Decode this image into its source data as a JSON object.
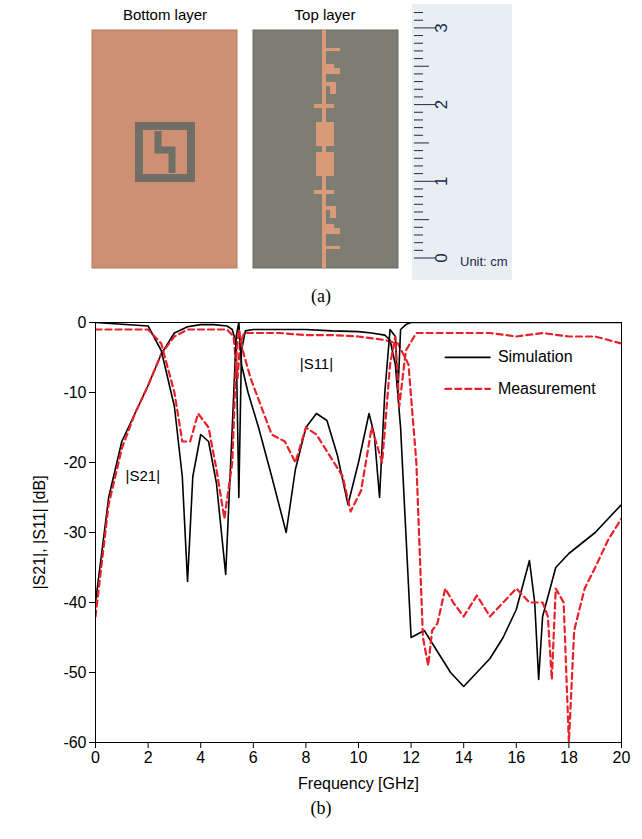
{
  "photo": {
    "label": "(a)",
    "bottom_layer": "Bottom layer",
    "top_layer": "Top layer",
    "ruler": {
      "ticks": [
        0,
        1,
        2,
        3
      ],
      "unit": "Unit: cm"
    }
  },
  "chart_data": {
    "type": "line",
    "label": "(b)",
    "x_label": "Frequency [GHz]",
    "y_label": "|S21|, |S11| [dB]",
    "xlim": [
      0,
      20
    ],
    "xticks": [
      0,
      2,
      4,
      6,
      8,
      10,
      12,
      14,
      16,
      18,
      20
    ],
    "ylim": [
      -60,
      0
    ],
    "yticks": [
      -60,
      -50,
      -40,
      -30,
      -20,
      -10,
      0
    ],
    "grid": false,
    "legend": "upper right",
    "annotations": [
      {
        "text": "|S21|",
        "x": 1.8,
        "y": -22
      },
      {
        "text": "|S11|",
        "x": 8.4,
        "y": -6
      }
    ],
    "series": [
      {
        "name": "Simulation",
        "parameter": "|S21|",
        "color": "#000000",
        "line_style": "solid",
        "x": [
          0,
          0.5,
          1,
          1.5,
          2,
          2.5,
          3,
          3.5,
          4,
          4.5,
          5,
          5.2,
          5.35,
          5.45,
          5.55,
          5.7,
          6,
          7,
          8,
          9,
          10,
          10.5,
          11,
          11.2,
          11.4,
          11.6,
          11.8,
          12,
          12.5,
          13,
          13.5,
          14,
          14.5,
          15,
          15.5,
          16,
          16.5,
          16.7,
          16.85,
          17,
          17.5,
          18,
          19,
          20
        ],
        "values": [
          -40,
          -25,
          -17,
          -13,
          -9,
          -4.5,
          -1.5,
          -0.6,
          -0.3,
          -0.3,
          -0.5,
          -1,
          -3,
          -25,
          -4,
          -1.2,
          -1,
          -1,
          -1,
          -1.2,
          -1.3,
          -1.5,
          -1.8,
          -2.5,
          -6,
          -15,
          -30,
          -45,
          -44,
          -47,
          -50,
          -52,
          -50,
          -48,
          -45,
          -41,
          -34,
          -40,
          -51,
          -42,
          -35,
          -33,
          -30,
          -26
        ]
      },
      {
        "name": "Measurement",
        "parameter": "|S21|",
        "color": "#e8202a",
        "line_style": "dashed",
        "x": [
          0,
          0.5,
          1,
          1.5,
          2,
          2.5,
          3,
          3.5,
          4,
          5,
          5.25,
          5.4,
          5.5,
          5.65,
          6,
          7,
          8,
          9,
          10,
          11,
          11.5,
          11.9,
          12.2,
          12.45,
          12.65,
          12.8,
          13,
          13.3,
          13.6,
          14,
          14.5,
          15,
          15.5,
          16,
          16.5,
          17,
          17.2,
          17.35,
          17.5,
          17.8,
          18,
          18.2,
          18.6,
          19,
          19.5,
          20
        ],
        "values": [
          -42,
          -26,
          -18,
          -13,
          -9,
          -4.5,
          -2,
          -1,
          -1,
          -1,
          -2,
          -8,
          -3,
          -1.5,
          -1.5,
          -1.5,
          -1.8,
          -1.8,
          -2,
          -2.5,
          -3,
          -6,
          -20,
          -45,
          -49,
          -44,
          -43,
          -38,
          -40,
          -42,
          -39,
          -42,
          -40,
          -38,
          -40,
          -40,
          -42,
          -51,
          -38,
          -40,
          -60,
          -44,
          -38,
          -35,
          -31,
          -28
        ]
      },
      {
        "name": "Simulation",
        "parameter": "|S11|",
        "color": "#000000",
        "line_style": "solid",
        "x": [
          0,
          2,
          2.5,
          3,
          3.3,
          3.5,
          3.7,
          4,
          4.3,
          4.6,
          4.95,
          5.2,
          5.35,
          5.45,
          5.55,
          5.8,
          6.2,
          6.7,
          7.25,
          7.6,
          8,
          8.4,
          8.8,
          9.2,
          9.6,
          10,
          10.4,
          10.6,
          10.8,
          11,
          11.2,
          11.4,
          11.5,
          11.6,
          11.8,
          12,
          20
        ],
        "values": [
          0,
          -0.5,
          -4,
          -12,
          -22,
          -37,
          -22,
          -16,
          -17,
          -23,
          -36,
          -15,
          -2,
          0,
          -6,
          -10,
          -15,
          -22,
          -30,
          -21,
          -15,
          -13,
          -14,
          -19,
          -26,
          -20,
          -13,
          -16,
          -25,
          -10,
          -1,
          -2,
          -10,
          -1,
          -0.3,
          0,
          0
        ]
      },
      {
        "name": "Measurement",
        "parameter": "|S11|",
        "color": "#e8202a",
        "line_style": "dashed",
        "x": [
          0,
          1,
          2,
          2.5,
          3,
          3.3,
          3.6,
          3.9,
          4.3,
          4.6,
          4.9,
          5.2,
          5.35,
          5.45,
          5.6,
          5.9,
          6.3,
          6.7,
          7.2,
          7.6,
          8,
          8.4,
          8.9,
          9.4,
          9.7,
          10.1,
          10.5,
          10.9,
          11.2,
          11.4,
          11.55,
          11.8,
          12.2,
          13,
          14,
          15,
          16,
          17,
          18,
          19,
          19.5,
          20
        ],
        "values": [
          -1,
          -1,
          -1,
          -3,
          -10,
          -17,
          -17,
          -13,
          -15,
          -21,
          -28,
          -20,
          -5,
          -1,
          -4,
          -8,
          -12,
          -16,
          -17,
          -20,
          -15,
          -16,
          -19,
          -22,
          -27,
          -24,
          -15,
          -20,
          -6,
          -2,
          -12,
          -4,
          -1.5,
          -1.5,
          -1.5,
          -1.5,
          -2,
          -1.5,
          -2,
          -2,
          -2.5,
          -3
        ]
      }
    ]
  }
}
